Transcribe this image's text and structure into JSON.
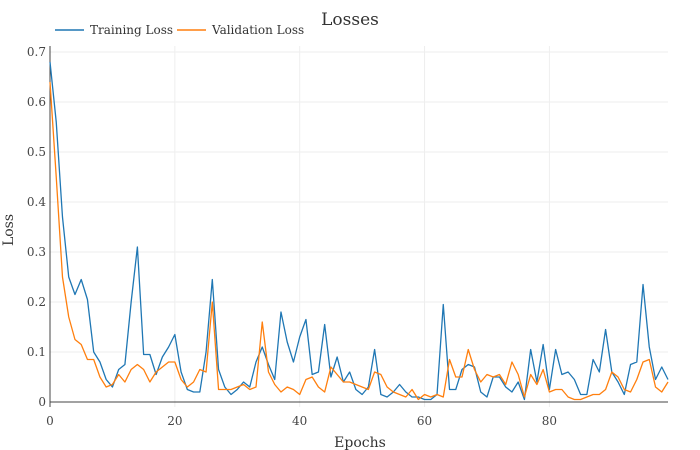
{
  "chart_data": {
    "type": "line",
    "title": "Losses",
    "xlabel": "Epochs",
    "ylabel": "Loss",
    "xlim": [
      0,
      99
    ],
    "ylim": [
      -0.01,
      0.7
    ],
    "x_ticks": [
      0,
      20,
      40,
      60,
      80
    ],
    "y_ticks": [
      0,
      0.1,
      0.2,
      0.3,
      0.4,
      0.5,
      0.6,
      0.7
    ],
    "x_tick_labels": [
      "0",
      "20",
      "40",
      "60",
      "80"
    ],
    "y_tick_labels": [
      "0",
      "0.1",
      "0.2",
      "0.3",
      "0.4",
      "0.5",
      "0.6",
      "0.7"
    ],
    "grid": true,
    "legend_position": "top-left",
    "series": [
      {
        "name": "Training Loss",
        "color": "#1f77b4",
        "values": [
          0.68,
          0.56,
          0.37,
          0.25,
          0.215,
          0.245,
          0.205,
          0.1,
          0.08,
          0.045,
          0.03,
          0.065,
          0.075,
          0.2,
          0.31,
          0.095,
          0.095,
          0.055,
          0.09,
          0.11,
          0.135,
          0.06,
          0.025,
          0.02,
          0.02,
          0.1,
          0.245,
          0.065,
          0.03,
          0.015,
          0.025,
          0.04,
          0.03,
          0.08,
          0.11,
          0.075,
          0.045,
          0.18,
          0.12,
          0.08,
          0.13,
          0.165,
          0.055,
          0.06,
          0.155,
          0.05,
          0.09,
          0.04,
          0.06,
          0.025,
          0.015,
          0.03,
          0.105,
          0.015,
          0.01,
          0.02,
          0.035,
          0.02,
          0.01,
          0.01,
          0.005,
          0.005,
          0.015,
          0.195,
          0.025,
          0.025,
          0.065,
          0.075,
          0.07,
          0.02,
          0.01,
          0.05,
          0.05,
          0.03,
          0.02,
          0.04,
          0.005,
          0.105,
          0.04,
          0.115,
          0.025,
          0.105,
          0.055,
          0.06,
          0.045,
          0.015,
          0.015,
          0.085,
          0.06,
          0.145,
          0.06,
          0.04,
          0.015,
          0.075,
          0.08,
          0.235,
          0.11,
          0.045,
          0.07,
          0.045
        ]
      },
      {
        "name": "Validation Loss",
        "color": "#ff7f0e",
        "values": [
          0.64,
          0.45,
          0.25,
          0.17,
          0.125,
          0.115,
          0.085,
          0.085,
          0.05,
          0.03,
          0.035,
          0.055,
          0.04,
          0.065,
          0.075,
          0.065,
          0.04,
          0.06,
          0.07,
          0.08,
          0.08,
          0.045,
          0.03,
          0.04,
          0.065,
          0.06,
          0.2,
          0.025,
          0.025,
          0.025,
          0.03,
          0.035,
          0.025,
          0.03,
          0.16,
          0.06,
          0.035,
          0.02,
          0.03,
          0.025,
          0.015,
          0.045,
          0.05,
          0.03,
          0.02,
          0.07,
          0.055,
          0.04,
          0.04,
          0.035,
          0.03,
          0.025,
          0.06,
          0.055,
          0.03,
          0.02,
          0.015,
          0.01,
          0.025,
          0.005,
          0.015,
          0.01,
          0.015,
          0.01,
          0.085,
          0.05,
          0.05,
          0.105,
          0.065,
          0.04,
          0.055,
          0.05,
          0.055,
          0.035,
          0.08,
          0.055,
          0.01,
          0.055,
          0.035,
          0.065,
          0.02,
          0.025,
          0.025,
          0.01,
          0.005,
          0.005,
          0.01,
          0.015,
          0.015,
          0.025,
          0.06,
          0.05,
          0.025,
          0.02,
          0.045,
          0.08,
          0.085,
          0.03,
          0.02,
          0.04
        ]
      }
    ]
  }
}
